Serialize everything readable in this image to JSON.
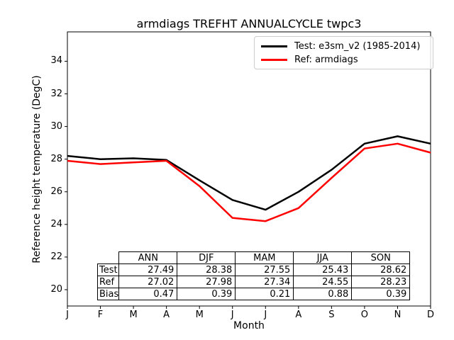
{
  "title": "armdiags TREFHT ANNUALCYCLE twpc3",
  "chart_data": {
    "type": "line",
    "title": "armdiags TREFHT ANNUALCYCLE twpc3",
    "xlabel": "Month",
    "ylabel": "Reference height temperature (DegC)",
    "x": [
      "J",
      "F",
      "M",
      "A",
      "M",
      "J",
      "J",
      "A",
      "S",
      "O",
      "N",
      "D"
    ],
    "yticks": [
      20,
      22,
      24,
      26,
      28,
      30,
      32,
      34
    ],
    "ylim": [
      19.0,
      35.8
    ],
    "grid": false,
    "legend_position": "upper right",
    "series": [
      {
        "name": "Test: e3sm_v2 (1985-2014)",
        "color": "#000000",
        "values": [
          28.2,
          28.0,
          28.05,
          27.95,
          26.7,
          25.5,
          24.9,
          26.0,
          27.35,
          28.95,
          29.4,
          28.95
        ]
      },
      {
        "name": "Ref: armdiags",
        "color": "#ff0000",
        "values": [
          27.9,
          27.7,
          27.8,
          27.9,
          26.35,
          24.4,
          24.2,
          25.0,
          26.85,
          28.65,
          28.95,
          28.4
        ]
      }
    ]
  },
  "table": {
    "columns": [
      "ANN",
      "DJF",
      "MAM",
      "JJA",
      "SON"
    ],
    "rows": [
      {
        "label": "Test",
        "values": [
          "27.49",
          "28.38",
          "27.55",
          "25.43",
          "28.62"
        ]
      },
      {
        "label": "Ref",
        "values": [
          "27.02",
          "27.98",
          "27.34",
          "24.55",
          "28.23"
        ]
      },
      {
        "label": "Bias",
        "values": [
          "0.47",
          "0.39",
          "0.21",
          "0.88",
          "0.39"
        ]
      }
    ]
  }
}
